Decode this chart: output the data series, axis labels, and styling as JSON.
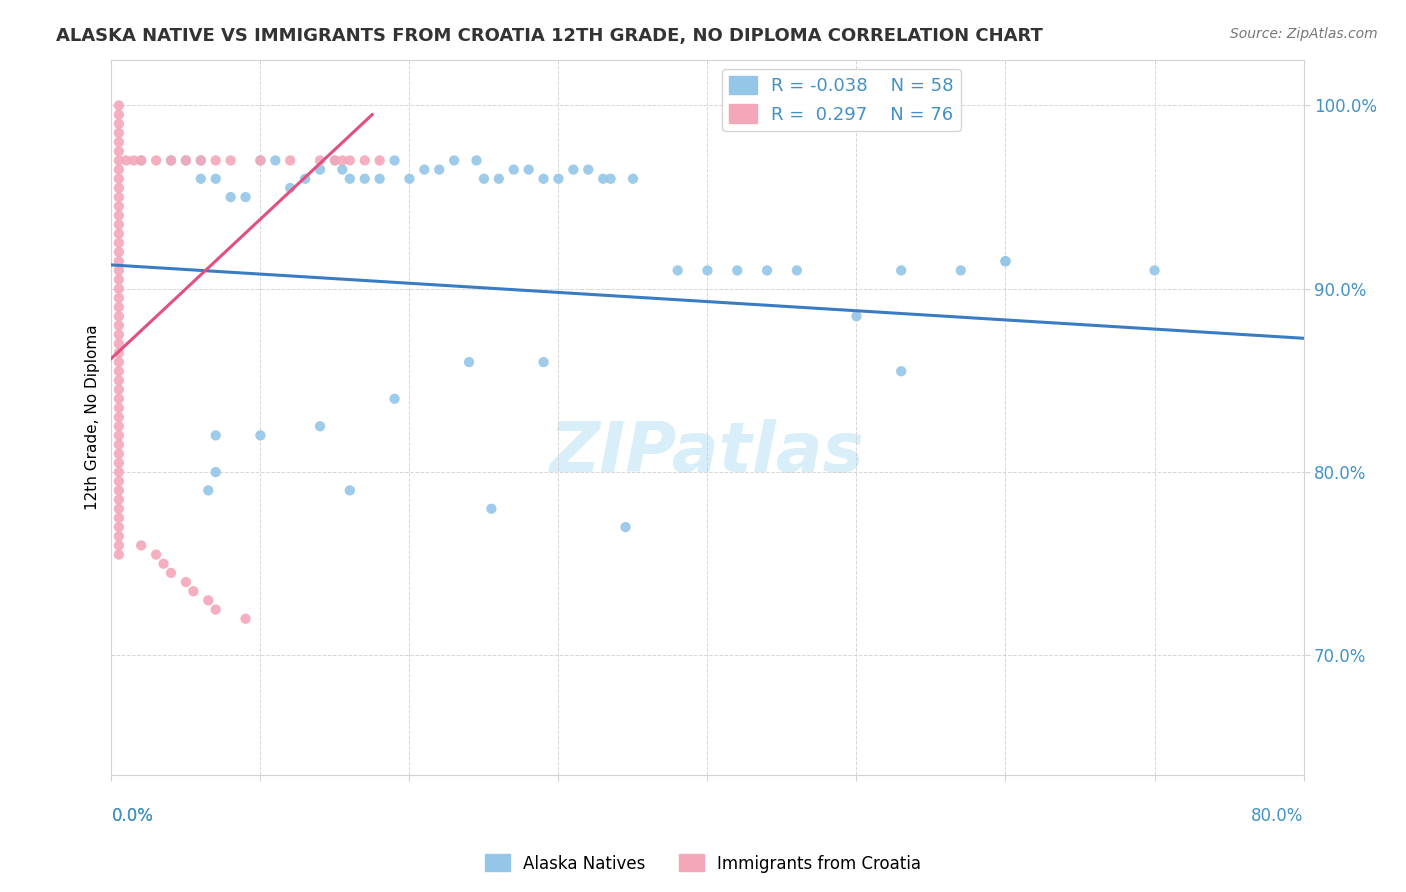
{
  "title": "ALASKA NATIVE VS IMMIGRANTS FROM CROATIA 12TH GRADE, NO DIPLOMA CORRELATION CHART",
  "source_text": "Source: ZipAtlas.com",
  "ylabel": "12th Grade, No Diploma",
  "ytick_labels": [
    "100.0%",
    "90.0%",
    "80.0%",
    "70.0%"
  ],
  "ytick_values": [
    1.0,
    0.9,
    0.8,
    0.7
  ],
  "xlim": [
    0.0,
    0.8
  ],
  "ylim": [
    0.635,
    1.025
  ],
  "color_blue": "#94C6E7",
  "color_pink": "#F4A7B9",
  "color_blue_line": "#3A7CC2",
  "color_pink_line": "#E05080",
  "color_title": "#333333",
  "color_source": "#777777",
  "color_watermark": "#D8EEF8",
  "color_grid": "#CCCCCC",
  "color_axis_labels": "#4292c6",
  "legend_r1_label": "R = -0.038",
  "legend_n1_label": "N = 58",
  "legend_r2_label": "R =  0.297",
  "legend_n2_label": "N = 76",
  "blue_line_x0": 0.0,
  "blue_line_y0": 0.913,
  "blue_line_x1": 0.8,
  "blue_line_y1": 0.873,
  "pink_line_x0": 0.0,
  "pink_line_y0": 0.862,
  "pink_line_x1": 0.175,
  "pink_line_y1": 0.995,
  "blue_scatter_x": [
    0.02,
    0.04,
    0.05,
    0.06,
    0.06,
    0.07,
    0.08,
    0.09,
    0.1,
    0.11,
    0.12,
    0.13,
    0.14,
    0.15,
    0.155,
    0.16,
    0.17,
    0.18,
    0.19,
    0.2,
    0.21,
    0.22,
    0.23,
    0.245,
    0.25,
    0.26,
    0.27,
    0.28,
    0.29,
    0.3,
    0.31,
    0.32,
    0.33,
    0.335,
    0.35,
    0.38,
    0.4,
    0.42,
    0.44,
    0.46,
    0.5,
    0.53,
    0.53,
    0.57,
    0.6,
    0.6,
    0.7,
    0.29,
    0.24,
    0.19,
    0.14,
    0.1,
    0.07,
    0.07,
    0.065,
    0.16,
    0.255,
    0.345
  ],
  "blue_scatter_y": [
    0.97,
    0.97,
    0.97,
    0.97,
    0.96,
    0.96,
    0.95,
    0.95,
    0.97,
    0.97,
    0.955,
    0.96,
    0.965,
    0.97,
    0.965,
    0.96,
    0.96,
    0.96,
    0.97,
    0.96,
    0.965,
    0.965,
    0.97,
    0.97,
    0.96,
    0.96,
    0.965,
    0.965,
    0.96,
    0.96,
    0.965,
    0.965,
    0.96,
    0.96,
    0.96,
    0.91,
    0.91,
    0.91,
    0.91,
    0.91,
    0.885,
    0.91,
    0.855,
    0.91,
    0.915,
    0.915,
    0.91,
    0.86,
    0.86,
    0.84,
    0.825,
    0.82,
    0.82,
    0.8,
    0.79,
    0.79,
    0.78,
    0.77
  ],
  "pink_scatter_x": [
    0.005,
    0.005,
    0.005,
    0.005,
    0.005,
    0.005,
    0.005,
    0.005,
    0.005,
    0.005,
    0.005,
    0.005,
    0.005,
    0.005,
    0.005,
    0.005,
    0.005,
    0.005,
    0.005,
    0.005,
    0.005,
    0.005,
    0.005,
    0.005,
    0.005,
    0.005,
    0.005,
    0.005,
    0.005,
    0.005,
    0.005,
    0.005,
    0.005,
    0.005,
    0.005,
    0.005,
    0.005,
    0.005,
    0.005,
    0.005,
    0.005,
    0.005,
    0.005,
    0.005,
    0.005,
    0.005,
    0.005,
    0.005,
    0.005,
    0.005,
    0.01,
    0.015,
    0.02,
    0.03,
    0.04,
    0.05,
    0.06,
    0.07,
    0.08,
    0.1,
    0.12,
    0.14,
    0.15,
    0.155,
    0.16,
    0.17,
    0.18,
    0.02,
    0.03,
    0.035,
    0.04,
    0.05,
    0.055,
    0.065,
    0.07,
    0.09
  ],
  "pink_scatter_y": [
    1.0,
    0.995,
    0.99,
    0.985,
    0.98,
    0.975,
    0.97,
    0.965,
    0.96,
    0.955,
    0.95,
    0.945,
    0.94,
    0.935,
    0.93,
    0.925,
    0.92,
    0.915,
    0.91,
    0.905,
    0.9,
    0.895,
    0.89,
    0.885,
    0.88,
    0.875,
    0.87,
    0.865,
    0.86,
    0.855,
    0.85,
    0.845,
    0.84,
    0.835,
    0.83,
    0.825,
    0.82,
    0.815,
    0.81,
    0.805,
    0.8,
    0.795,
    0.79,
    0.785,
    0.78,
    0.775,
    0.77,
    0.765,
    0.76,
    0.755,
    0.97,
    0.97,
    0.97,
    0.97,
    0.97,
    0.97,
    0.97,
    0.97,
    0.97,
    0.97,
    0.97,
    0.97,
    0.97,
    0.97,
    0.97,
    0.97,
    0.97,
    0.76,
    0.755,
    0.75,
    0.745,
    0.74,
    0.735,
    0.73,
    0.725,
    0.72
  ]
}
